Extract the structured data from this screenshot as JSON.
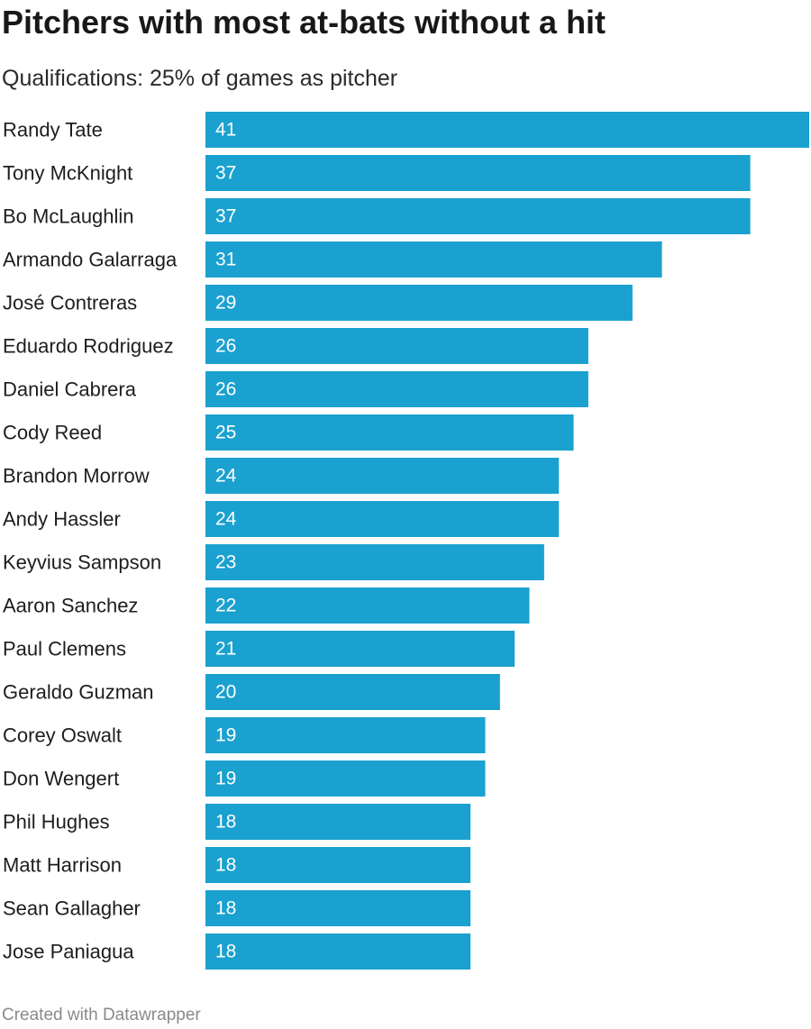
{
  "title": "Pitchers with most at-bats without a hit",
  "subtitle": "Qualifications: 25% of games as pitcher",
  "footer": "Created with Datawrapper",
  "colors": {
    "bar": "#1aa1cf",
    "value_text": "#ffffff",
    "label_text": "#1d1d1d"
  },
  "chart_data": {
    "type": "bar",
    "orientation": "horizontal",
    "title": "Pitchers with most at-bats without a hit",
    "subtitle": "Qualifications: 25% of games as pitcher",
    "xlabel": "",
    "ylabel": "",
    "xlim": [
      0,
      41
    ],
    "grid": false,
    "legend": "none",
    "categories": [
      "Randy Tate",
      "Tony McKnight",
      "Bo McLaughlin",
      "Armando Galarraga",
      "José Contreras",
      "Eduardo Rodriguez",
      "Daniel Cabrera",
      "Cody Reed",
      "Brandon Morrow",
      "Andy Hassler",
      "Keyvius Sampson",
      "Aaron Sanchez",
      "Paul Clemens",
      "Geraldo Guzman",
      "Corey Oswalt",
      "Don Wengert",
      "Phil Hughes",
      "Matt Harrison",
      "Sean Gallagher",
      "Jose Paniagua"
    ],
    "values": [
      41,
      37,
      37,
      31,
      29,
      26,
      26,
      25,
      24,
      24,
      23,
      22,
      21,
      20,
      19,
      19,
      18,
      18,
      18,
      18
    ]
  }
}
